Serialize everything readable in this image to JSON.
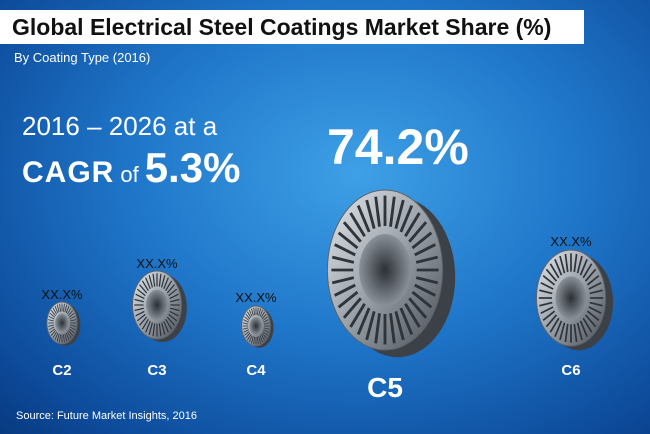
{
  "chart_data": {
    "type": "bar",
    "title": "Global Electrical Steel Coatings Market Share (%)",
    "subtitle": "By Coating Type (2016)",
    "categories": [
      "C2",
      "C3",
      "C4",
      "C5",
      "C6"
    ],
    "value_labels": [
      "XX.X%",
      "XX.X%",
      "XX.X%",
      "74.2%",
      "XX.X%"
    ],
    "values": [
      null,
      null,
      null,
      74.2,
      null
    ],
    "unit": "%"
  },
  "cagr": {
    "period": "2016 – 2026 at a",
    "label": "CAGR",
    "of": "of",
    "value": "5.3%"
  },
  "source": "Source: Future Market Insights, 2016",
  "colors": {
    "background_center": "#3ea0e6",
    "background_edge": "#083a80",
    "title_band": "#ffffff",
    "text_dark": "#111111",
    "text_light": "#ffffff",
    "steel_light": "#c9ced4",
    "steel_dark": "#4a4f56"
  },
  "icons": [
    "stator-core-icon"
  ]
}
